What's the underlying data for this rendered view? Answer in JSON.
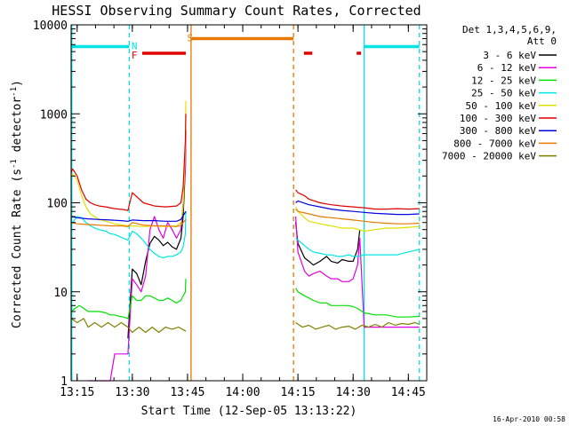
{
  "chart_data": {
    "type": "line",
    "title": "HESSI Observing Summary Count Rates, Corrected",
    "xlabel": "Start Time (12-Sep-05 13:13:22)",
    "ylabel_main": "Corrected Count Rate (s",
    "ylabel_sup1": "-1",
    "ylabel_mid": " detector",
    "ylabel_sup2": "-1",
    "ylabel_end": ")",
    "yscale": "log",
    "ylim": [
      1,
      10000
    ],
    "xlim": [
      13.2228,
      14.8333
    ],
    "x_tick_labels": [
      "13:15",
      "13:30",
      "13:45",
      "14:00",
      "14:15",
      "14:30",
      "14:45"
    ],
    "x_tick_values": [
      13.25,
      13.5,
      13.75,
      14.0,
      14.25,
      14.5,
      14.75
    ],
    "y_tick_labels": [
      "1",
      "10",
      "100",
      "1000",
      "10000"
    ],
    "y_tick_values": [
      1,
      10,
      100,
      1000,
      10000
    ],
    "legend_header1": "Det 1,3,4,5,6,9,",
    "legend_header2": "Att 0",
    "legend_position": "right",
    "timestamp": "16-Apr-2010 00:58",
    "flags": {
      "N": {
        "label": "N",
        "color": "#00e5e5"
      },
      "F": {
        "label": "F",
        "color": "#e00000"
      },
      "S": {
        "label": "S",
        "color": "#e87800"
      }
    },
    "flag_bars": [
      {
        "flag": "N",
        "start": 13.2228,
        "end": 13.486,
        "y": 5700,
        "color": "#00e5e5"
      },
      {
        "flag": "N",
        "start": 14.55,
        "end": 14.8,
        "y": 5700,
        "color": "#00e5e5"
      },
      {
        "flag": "F",
        "start": 13.545,
        "end": 13.742,
        "y": 4800,
        "color": "#e00000"
      },
      {
        "flag": "F",
        "start": 14.277,
        "end": 14.315,
        "y": 4800,
        "color": "#e00000"
      },
      {
        "flag": "F",
        "start": 14.516,
        "end": 14.536,
        "y": 4800,
        "color": "#e00000"
      },
      {
        "flag": "S",
        "start": 13.77,
        "end": 14.23,
        "y": 7000,
        "color": "#e87800"
      }
    ],
    "vlines": [
      {
        "x": 13.226,
        "color": "#00e5e5",
        "style": "solid"
      },
      {
        "x": 13.486,
        "color": "#00e5e5",
        "style": "dashed"
      },
      {
        "x": 13.766,
        "color": "#e87800",
        "style": "solid"
      },
      {
        "x": 14.23,
        "color": "#e87800",
        "style": "dashed"
      },
      {
        "x": 14.55,
        "color": "#00e5e5",
        "style": "solid"
      },
      {
        "x": 14.8,
        "color": "#00e5e5",
        "style": "dashed"
      }
    ],
    "series": [
      {
        "name": "3 - 6 keV",
        "color": "#000000",
        "x": [
          13.48,
          13.5,
          13.52,
          13.54,
          13.56,
          13.58,
          13.6,
          13.62,
          13.64,
          13.66,
          13.68,
          13.7,
          13.72,
          13.73,
          13.74,
          13.742,
          14.24,
          14.25,
          14.28,
          14.3,
          14.32,
          14.35,
          14.38,
          14.4,
          14.43,
          14.45,
          14.48,
          14.5,
          14.52,
          14.53
        ],
        "y": [
          3,
          18,
          16,
          12,
          22,
          35,
          42,
          38,
          33,
          36,
          32,
          30,
          40,
          70,
          250,
          650,
          60,
          35,
          24,
          22,
          20,
          22,
          25,
          22,
          21,
          23,
          22,
          22,
          30,
          50
        ]
      },
      {
        "name": "6 - 12 keV",
        "color": "#e000e0",
        "x": [
          13.3,
          13.35,
          13.4,
          13.42,
          13.46,
          13.48,
          13.5,
          13.52,
          13.54,
          13.56,
          13.58,
          13.6,
          13.62,
          13.64,
          13.66,
          13.68,
          13.7,
          13.72,
          13.73,
          13.74,
          13.742,
          14.24,
          14.25,
          14.28,
          14.3,
          14.32,
          14.35,
          14.38,
          14.4,
          14.43,
          14.45,
          14.48,
          14.5,
          14.52,
          14.53,
          14.55,
          14.6,
          14.7,
          14.8
        ],
        "y": [
          1,
          1,
          1,
          2,
          2,
          2,
          14,
          12,
          10,
          15,
          50,
          70,
          50,
          40,
          60,
          50,
          40,
          50,
          100,
          250,
          550,
          70,
          28,
          17,
          15,
          16,
          17,
          15,
          14,
          14,
          13,
          13,
          14,
          20,
          40,
          4,
          4,
          4,
          4
        ]
      },
      {
        "name": "12 - 25 keV",
        "color": "#00e000",
        "x": [
          13.2228,
          13.24,
          13.26,
          13.28,
          13.3,
          13.32,
          13.35,
          13.38,
          13.4,
          13.42,
          13.44,
          13.46,
          13.48,
          13.5,
          13.52,
          13.54,
          13.56,
          13.58,
          13.6,
          13.62,
          13.64,
          13.66,
          13.68,
          13.7,
          13.72,
          13.73,
          13.74,
          13.742,
          14.24,
          14.25,
          14.28,
          14.3,
          14.32,
          14.35,
          14.38,
          14.4,
          14.43,
          14.45,
          14.48,
          14.5,
          14.52,
          14.55,
          14.6,
          14.65,
          14.7,
          14.75,
          14.8
        ],
        "y": [
          6,
          6.5,
          7,
          6.5,
          6,
          6,
          6,
          5.8,
          5.5,
          5.5,
          5.3,
          5.2,
          5,
          9,
          8,
          8,
          9,
          9,
          8.5,
          8,
          8,
          8.5,
          8,
          7.5,
          8,
          9,
          10,
          14,
          11,
          10,
          9,
          8.5,
          8,
          7.5,
          7.5,
          7,
          7,
          7,
          7,
          6.8,
          6.5,
          5.8,
          5.5,
          5.5,
          5.2,
          5.2,
          5.3
        ]
      },
      {
        "name": "25 - 50 keV",
        "color": "#00e5e5",
        "x": [
          13.2228,
          13.23,
          13.25,
          13.27,
          13.29,
          13.31,
          13.33,
          13.35,
          13.38,
          13.4,
          13.42,
          13.44,
          13.46,
          13.48,
          13.5,
          13.52,
          13.54,
          13.56,
          13.58,
          13.6,
          13.62,
          13.64,
          13.66,
          13.68,
          13.7,
          13.72,
          13.73,
          13.74,
          13.742,
          14.24,
          14.25,
          14.28,
          14.3,
          14.32,
          14.35,
          14.38,
          14.4,
          14.43,
          14.45,
          14.48,
          14.5,
          14.52,
          14.55,
          14.6,
          14.65,
          14.7,
          14.75,
          14.8
        ],
        "y": [
          55,
          60,
          70,
          68,
          60,
          55,
          52,
          50,
          48,
          45,
          44,
          42,
          40,
          38,
          48,
          45,
          40,
          35,
          30,
          27,
          25,
          24,
          25,
          25,
          26,
          28,
          32,
          45,
          80,
          40,
          38,
          33,
          30,
          28,
          27,
          26,
          26,
          25,
          25,
          26,
          25,
          25,
          26,
          26,
          26,
          26,
          28,
          30
        ]
      },
      {
        "name": "50 - 100 keV",
        "color": "#e0e000",
        "x": [
          13.2228,
          13.23,
          13.25,
          13.27,
          13.29,
          13.31,
          13.33,
          13.35,
          13.38,
          13.4,
          13.42,
          13.44,
          13.46,
          13.48,
          13.5,
          13.55,
          13.6,
          13.65,
          13.7,
          13.72,
          13.73,
          13.74,
          13.742,
          14.24,
          14.25,
          14.28,
          14.3,
          14.35,
          14.4,
          14.45,
          14.5,
          14.55,
          14.6,
          14.65,
          14.7,
          14.75,
          14.8
        ],
        "y": [
          200,
          210,
          180,
          120,
          90,
          75,
          70,
          65,
          62,
          60,
          58,
          57,
          56,
          55,
          55,
          54,
          55,
          54,
          55,
          60,
          90,
          400,
          1400,
          90,
          80,
          68,
          62,
          58,
          55,
          52,
          52,
          48,
          50,
          52,
          52,
          53,
          54
        ]
      },
      {
        "name": "100 - 300 keV",
        "color": "#e00000",
        "x": [
          13.2228,
          13.23,
          13.25,
          13.27,
          13.29,
          13.31,
          13.33,
          13.35,
          13.38,
          13.4,
          13.42,
          13.44,
          13.46,
          13.48,
          13.5,
          13.55,
          13.6,
          13.65,
          13.7,
          13.72,
          13.73,
          13.74,
          13.742,
          14.24,
          14.25,
          14.28,
          14.3,
          14.35,
          14.4,
          14.45,
          14.5,
          14.55,
          14.6,
          14.65,
          14.7,
          14.75,
          14.8
        ],
        "y": [
          220,
          240,
          200,
          140,
          110,
          100,
          95,
          92,
          90,
          88,
          86,
          85,
          84,
          82,
          130,
          100,
          92,
          90,
          92,
          100,
          150,
          500,
          1000,
          140,
          130,
          120,
          110,
          100,
          95,
          92,
          90,
          88,
          85,
          85,
          86,
          85,
          86
        ]
      },
      {
        "name": "300 - 800 keV",
        "color": "#0000e0",
        "x": [
          13.2228,
          13.25,
          13.3,
          13.35,
          13.4,
          13.45,
          13.48,
          13.5,
          13.55,
          13.6,
          13.65,
          13.7,
          13.72,
          13.742,
          14.24,
          14.25,
          14.3,
          14.35,
          14.4,
          14.45,
          14.5,
          14.55,
          14.6,
          14.65,
          14.7,
          14.75,
          14.8
        ],
        "y": [
          70,
          68,
          66,
          65,
          64,
          63,
          62,
          64,
          63,
          63,
          62,
          62,
          65,
          80,
          100,
          105,
          95,
          90,
          85,
          82,
          80,
          78,
          76,
          75,
          74,
          74,
          75
        ]
      },
      {
        "name": "800 - 7000 keV",
        "color": "#e87800",
        "x": [
          13.2228,
          13.25,
          13.3,
          13.35,
          13.4,
          13.45,
          13.48,
          13.5,
          13.55,
          13.6,
          13.65,
          13.7,
          13.72,
          13.742,
          14.24,
          14.25,
          14.3,
          14.35,
          14.4,
          14.45,
          14.5,
          14.55,
          14.6,
          14.65,
          14.7,
          14.75,
          14.8
        ],
        "y": [
          60,
          58,
          57,
          56,
          55,
          55,
          54,
          60,
          56,
          55,
          55,
          54,
          56,
          65,
          85,
          80,
          75,
          70,
          68,
          66,
          64,
          62,
          60,
          59,
          58,
          58,
          59
        ]
      },
      {
        "name": "7000 - 20000 keV",
        "color": "#7f7f00",
        "x": [
          13.2228,
          13.25,
          13.28,
          13.3,
          13.33,
          13.36,
          13.39,
          13.42,
          13.45,
          13.48,
          13.5,
          13.53,
          13.56,
          13.59,
          13.62,
          13.65,
          13.68,
          13.71,
          13.742,
          14.24,
          14.27,
          14.3,
          14.33,
          14.36,
          14.39,
          14.42,
          14.45,
          14.48,
          14.51,
          14.54,
          14.57,
          14.6,
          14.63,
          14.66,
          14.69,
          14.72,
          14.75,
          14.78,
          14.8
        ],
        "y": [
          5,
          4.5,
          5,
          4,
          4.5,
          4,
          4.5,
          4,
          4.5,
          4,
          3.5,
          4,
          3.5,
          4,
          3.5,
          4,
          3.8,
          4,
          3.6,
          4.5,
          4,
          4.2,
          3.8,
          4,
          4.2,
          3.8,
          4,
          4.1,
          3.8,
          4.2,
          4,
          4.3,
          4,
          4.5,
          4.2,
          4.4,
          4.3,
          4.5,
          4.3
        ]
      }
    ]
  }
}
